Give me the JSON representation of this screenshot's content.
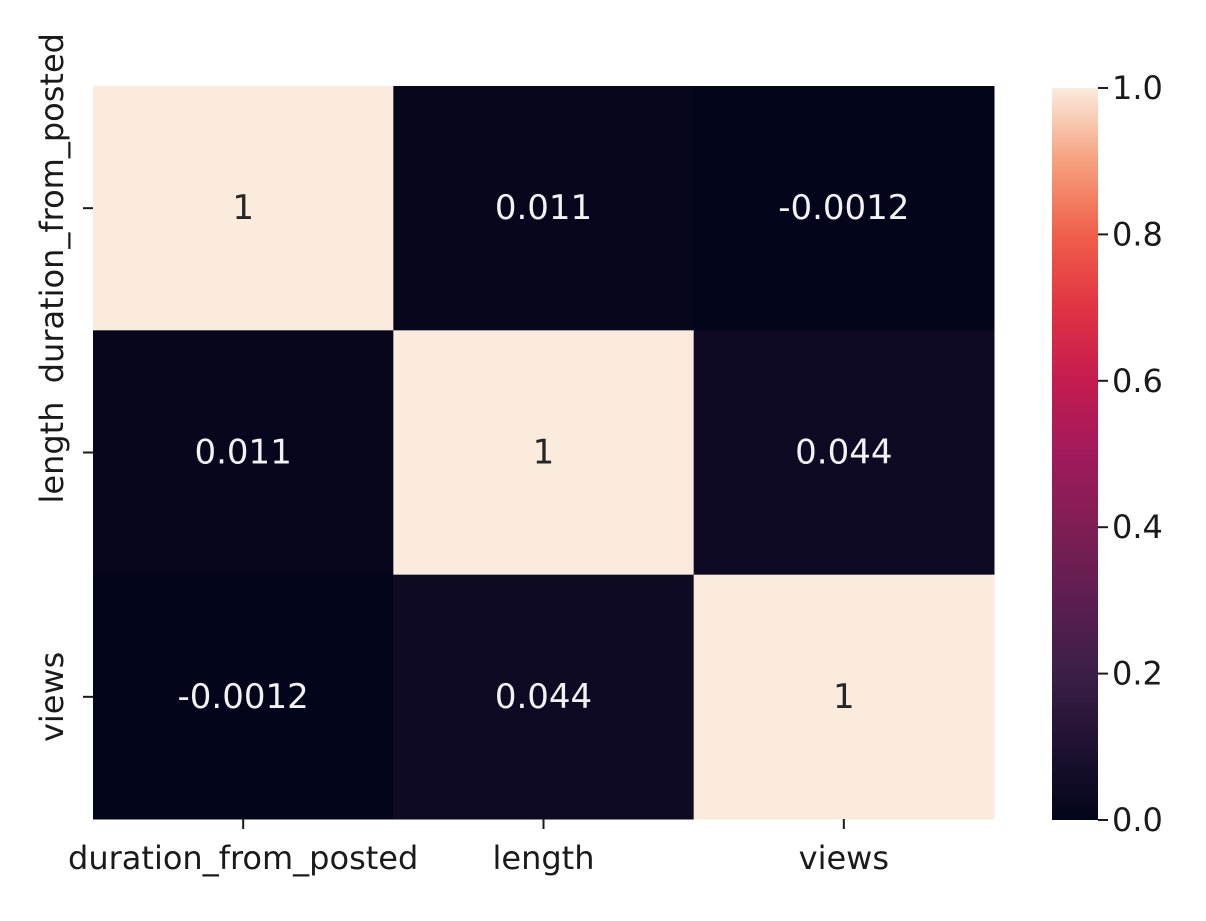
{
  "chart_data": {
    "type": "heatmap",
    "title": "",
    "xlabel": "",
    "ylabel": "",
    "x_categories": [
      "duration_from_posted",
      "length",
      "views"
    ],
    "y_categories": [
      "duration_from_posted",
      "length",
      "views"
    ],
    "values": [
      [
        1,
        0.011,
        -0.0012
      ],
      [
        0.011,
        1,
        0.044
      ],
      [
        -0.0012,
        0.044,
        1
      ]
    ],
    "cell_labels": [
      [
        "1",
        "0.011",
        "-0.0012"
      ],
      [
        "0.011",
        "1",
        "0.044"
      ],
      [
        "-0.0012",
        "0.044",
        "1"
      ]
    ],
    "colorbar": {
      "range": [
        0.0,
        1.0
      ],
      "ticks": [
        "0.0",
        "0.2",
        "0.4",
        "0.6",
        "0.8",
        "1.0"
      ],
      "colormap": "rocket"
    },
    "grid": false,
    "legend": "colorbar-right"
  }
}
